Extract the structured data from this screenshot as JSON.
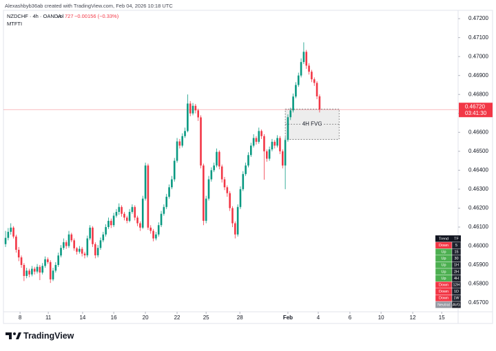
{
  "header": {
    "credit": "Alexashbyb36ab created with TradingView.com, Feb 04, 2026 10:18 UTC",
    "symbol": "NZDCHF · 4h · OANDA",
    "volume_label": "Vol",
    "volume": 727,
    "change": "−0.00156 (−0.33%)",
    "indicator": "MTFTI"
  },
  "chart_data": {
    "type": "candlestick",
    "colors": {
      "up": "#089981",
      "down": "#f23645"
    },
    "ohlc": [
      [
        0.4601,
        0.4608,
        0.45995,
        0.46043
      ],
      [
        0.46043,
        0.46095,
        0.4603,
        0.46075
      ],
      [
        0.46075,
        0.4612,
        0.4606,
        0.46097
      ],
      [
        0.46097,
        0.46105,
        0.4604,
        0.4605
      ],
      [
        0.4605,
        0.4606,
        0.45965,
        0.4598
      ],
      [
        0.4598,
        0.45995,
        0.4592,
        0.4594
      ],
      [
        0.4594,
        0.4595,
        0.45885,
        0.459
      ],
      [
        0.459,
        0.4591,
        0.45815,
        0.45842
      ],
      [
        0.45842,
        0.45885,
        0.4583,
        0.4587
      ],
      [
        0.4587,
        0.4588,
        0.45835,
        0.4585
      ],
      [
        0.4585,
        0.45895,
        0.4584,
        0.4588
      ],
      [
        0.4588,
        0.4589,
        0.4585,
        0.45865
      ],
      [
        0.45865,
        0.45905,
        0.45855,
        0.4589
      ],
      [
        0.4589,
        0.459,
        0.4582,
        0.4586
      ],
      [
        0.4586,
        0.4591,
        0.4585,
        0.45895
      ],
      [
        0.45895,
        0.45945,
        0.45885,
        0.4593
      ],
      [
        0.4593,
        0.4594,
        0.45905,
        0.45915
      ],
      [
        0.45915,
        0.45925,
        0.45805,
        0.45824
      ],
      [
        0.45824,
        0.45885,
        0.45815,
        0.4587
      ],
      [
        0.4587,
        0.45915,
        0.4586,
        0.459
      ],
      [
        0.459,
        0.45965,
        0.4589,
        0.4595
      ],
      [
        0.4595,
        0.46005,
        0.4594,
        0.4599
      ],
      [
        0.4599,
        0.4604,
        0.4598,
        0.4602
      ],
      [
        0.4602,
        0.4603,
        0.45985,
        0.46
      ],
      [
        0.46,
        0.4608,
        0.4599,
        0.46061
      ],
      [
        0.46061,
        0.4607,
        0.4602,
        0.4603
      ],
      [
        0.4603,
        0.4604,
        0.45975,
        0.45988
      ],
      [
        0.45988,
        0.45995,
        0.45955,
        0.4597
      ],
      [
        0.4597,
        0.46,
        0.4596,
        0.45985
      ],
      [
        0.45985,
        0.45995,
        0.45945,
        0.4596
      ],
      [
        0.4596,
        0.4597,
        0.45935,
        0.45951
      ],
      [
        0.45951,
        0.46055,
        0.4594,
        0.4604
      ],
      [
        0.4604,
        0.4611,
        0.4603,
        0.46097
      ],
      [
        0.46097,
        0.46105,
        0.45995,
        0.4601
      ],
      [
        0.4601,
        0.4602,
        0.45935,
        0.45951
      ],
      [
        0.45951,
        0.46005,
        0.4594,
        0.4599
      ],
      [
        0.4599,
        0.46045,
        0.4598,
        0.4603
      ],
      [
        0.4603,
        0.46075,
        0.4602,
        0.46061
      ],
      [
        0.46061,
        0.46115,
        0.4605,
        0.461
      ],
      [
        0.461,
        0.4615,
        0.4609,
        0.46133
      ],
      [
        0.46133,
        0.46145,
        0.46095,
        0.4611
      ],
      [
        0.4611,
        0.46175,
        0.461,
        0.4616
      ],
      [
        0.4616,
        0.46195,
        0.4615,
        0.4618
      ],
      [
        0.4618,
        0.46225,
        0.46165,
        0.46206
      ],
      [
        0.46206,
        0.46215,
        0.46155,
        0.4617
      ],
      [
        0.4617,
        0.4618,
        0.46135,
        0.4615
      ],
      [
        0.4615,
        0.4616,
        0.4612,
        0.46133
      ],
      [
        0.46133,
        0.46195,
        0.46125,
        0.4618
      ],
      [
        0.4618,
        0.4622,
        0.4617,
        0.46206
      ],
      [
        0.46206,
        0.46215,
        0.46135,
        0.4615
      ],
      [
        0.4615,
        0.4616,
        0.46105,
        0.4612
      ],
      [
        0.4612,
        0.4613,
        0.4608,
        0.46097
      ],
      [
        0.46097,
        0.46265,
        0.4609,
        0.4625
      ],
      [
        0.4625,
        0.4644,
        0.4624,
        0.46425
      ],
      [
        0.46425,
        0.46435,
        0.46085,
        0.46097
      ],
      [
        0.46097,
        0.4611,
        0.46065,
        0.4608
      ],
      [
        0.4608,
        0.4609,
        0.46025,
        0.4604
      ],
      [
        0.4604,
        0.46075,
        0.4603,
        0.46061
      ],
      [
        0.46061,
        0.46125,
        0.4605,
        0.4611
      ],
      [
        0.4611,
        0.46185,
        0.461,
        0.4617
      ],
      [
        0.4617,
        0.4622,
        0.4616,
        0.46206
      ],
      [
        0.46206,
        0.46275,
        0.46195,
        0.4626
      ],
      [
        0.4626,
        0.46325,
        0.4625,
        0.4631
      ],
      [
        0.4631,
        0.4637,
        0.463,
        0.46352
      ],
      [
        0.46352,
        0.46465,
        0.4634,
        0.4645
      ],
      [
        0.4645,
        0.4657,
        0.4644,
        0.46552
      ],
      [
        0.46552,
        0.46565,
        0.46515,
        0.4653
      ],
      [
        0.4653,
        0.46595,
        0.4652,
        0.4658
      ],
      [
        0.4658,
        0.46625,
        0.4657,
        0.46607
      ],
      [
        0.46607,
        0.468,
        0.466,
        0.46752
      ],
      [
        0.46752,
        0.46765,
        0.46685,
        0.467
      ],
      [
        0.467,
        0.46755,
        0.4669,
        0.4674
      ],
      [
        0.4674,
        0.4675,
        0.467,
        0.46716
      ],
      [
        0.46716,
        0.46725,
        0.4666,
        0.46679
      ],
      [
        0.46679,
        0.4669,
        0.4641,
        0.46425
      ],
      [
        0.46425,
        0.46435,
        0.4611,
        0.46133
      ],
      [
        0.46133,
        0.46265,
        0.4612,
        0.4625
      ],
      [
        0.4625,
        0.4637,
        0.4624,
        0.46352
      ],
      [
        0.46352,
        0.46415,
        0.4634,
        0.464
      ],
      [
        0.464,
        0.4644,
        0.4639,
        0.46425
      ],
      [
        0.46425,
        0.46515,
        0.46415,
        0.46497
      ],
      [
        0.46497,
        0.46505,
        0.46405,
        0.4642
      ],
      [
        0.4642,
        0.4643,
        0.46335,
        0.46352
      ],
      [
        0.46352,
        0.46365,
        0.46295,
        0.4631
      ],
      [
        0.4631,
        0.4632,
        0.4626,
        0.46279
      ],
      [
        0.46279,
        0.4629,
        0.46185,
        0.462
      ],
      [
        0.462,
        0.4621,
        0.461,
        0.4612
      ],
      [
        0.4612,
        0.4613,
        0.4604,
        0.46061
      ],
      [
        0.46061,
        0.4622,
        0.4605,
        0.46206
      ],
      [
        0.46206,
        0.46315,
        0.46195,
        0.463
      ],
      [
        0.463,
        0.46395,
        0.4629,
        0.4638
      ],
      [
        0.4638,
        0.4644,
        0.4637,
        0.46425
      ],
      [
        0.46425,
        0.46495,
        0.46415,
        0.4648
      ],
      [
        0.4648,
        0.46545,
        0.4647,
        0.4653
      ],
      [
        0.4653,
        0.4659,
        0.4652,
        0.4657
      ],
      [
        0.4657,
        0.4658,
        0.46535,
        0.4655
      ],
      [
        0.4655,
        0.46625,
        0.4654,
        0.46607
      ],
      [
        0.46607,
        0.46615,
        0.46565,
        0.4658
      ],
      [
        0.4658,
        0.4659,
        0.4635,
        0.465
      ],
      [
        0.465,
        0.4651,
        0.46445,
        0.46461
      ],
      [
        0.46461,
        0.46525,
        0.4645,
        0.4651
      ],
      [
        0.4651,
        0.46565,
        0.465,
        0.4655
      ],
      [
        0.4655,
        0.4656,
        0.46515,
        0.4653
      ],
      [
        0.4653,
        0.46585,
        0.4652,
        0.4657
      ],
      [
        0.4657,
        0.4658,
        0.46485,
        0.465
      ],
      [
        0.465,
        0.4651,
        0.4641,
        0.46425
      ],
      [
        0.46425,
        0.46575,
        0.463,
        0.4656
      ],
      [
        0.4656,
        0.46695,
        0.4655,
        0.4668
      ],
      [
        0.4668,
        0.4673,
        0.46665,
        0.46716
      ],
      [
        0.46716,
        0.46805,
        0.46705,
        0.46789
      ],
      [
        0.46789,
        0.46865,
        0.4678,
        0.4685
      ],
      [
        0.4685,
        0.46915,
        0.4684,
        0.469
      ],
      [
        0.469,
        0.4699,
        0.4689,
        0.46971
      ],
      [
        0.46971,
        0.47075,
        0.4696,
        0.47025
      ],
      [
        0.47025,
        0.47035,
        0.46935,
        0.46952
      ],
      [
        0.46952,
        0.46965,
        0.46905,
        0.4692
      ],
      [
        0.4692,
        0.4693,
        0.46865,
        0.4688
      ],
      [
        0.4688,
        0.4689,
        0.46845,
        0.46861
      ],
      [
        0.46861,
        0.4687,
        0.46775,
        0.4679
      ],
      [
        0.4679,
        0.468,
        0.46705,
        0.4672
      ]
    ],
    "xlim": [
      -0.8,
      171.5
    ],
    "xticks": [
      {
        "value": 5.5,
        "label": "8"
      },
      {
        "value": 16.2,
        "label": "11"
      },
      {
        "value": 29.2,
        "label": "14"
      },
      {
        "value": 41,
        "label": "16"
      },
      {
        "value": 53,
        "label": "20"
      },
      {
        "value": 65,
        "label": "22"
      },
      {
        "value": 76,
        "label": "25"
      },
      {
        "value": 88.8,
        "label": "28"
      },
      {
        "value": 107,
        "label": "Feb"
      },
      {
        "value": 118.5,
        "label": "4"
      },
      {
        "value": 130.5,
        "label": "6"
      },
      {
        "value": 142.3,
        "label": "10"
      },
      {
        "value": 154.3,
        "label": "12"
      },
      {
        "value": 165.3,
        "label": "15"
      }
    ],
    "ylim": [
      0.45653,
      0.47244
    ],
    "yticks": [
      {
        "value": 0.472,
        "label": "0.47200"
      },
      {
        "value": 0.471,
        "label": "0.47100"
      },
      {
        "value": 0.47,
        "label": "0.47000"
      },
      {
        "value": 0.469,
        "label": "0.46900"
      },
      {
        "value": 0.468,
        "label": "0.46800"
      },
      {
        "value": 0.467,
        "label": "0.46700"
      },
      {
        "value": 0.466,
        "label": "0.46600"
      },
      {
        "value": 0.465,
        "label": "0.46500"
      },
      {
        "value": 0.464,
        "label": "0.46400"
      },
      {
        "value": 0.463,
        "label": "0.46300"
      },
      {
        "value": 0.462,
        "label": "0.46200"
      },
      {
        "value": 0.461,
        "label": "0.46100"
      },
      {
        "value": 0.46,
        "label": "0.46000"
      },
      {
        "value": 0.459,
        "label": "0.45900"
      },
      {
        "value": 0.458,
        "label": "0.45800"
      },
      {
        "value": 0.457,
        "label": "0.45700"
      }
    ],
    "grid": false,
    "last_price": {
      "value": 0.4672,
      "label": "0.46720",
      "countdown": "03:41:30",
      "color": "#f23645"
    },
    "annotations": [
      {
        "type": "box",
        "label": "4H FVG",
        "x": [
          106,
          126.4
        ],
        "y": [
          0.46563,
          0.46723
        ]
      }
    ]
  },
  "trend_table": {
    "header": [
      "Trend",
      "TF"
    ],
    "rows": [
      [
        "Down",
        "5"
      ],
      [
        "Up",
        "15"
      ],
      [
        "Up",
        "30"
      ],
      [
        "Up",
        "1H"
      ],
      [
        "Up",
        "2H"
      ],
      [
        "Up",
        "4H"
      ],
      [
        "Down",
        "12H"
      ],
      [
        "Down",
        "1D"
      ],
      [
        "Down",
        "1W"
      ],
      [
        "Neutral",
        "AVG"
      ]
    ],
    "colors": {
      "Down": "#f23645",
      "Up": "#4caf50",
      "Neutral": "#9598a1"
    }
  },
  "footer": {
    "logo": "TradingView"
  }
}
